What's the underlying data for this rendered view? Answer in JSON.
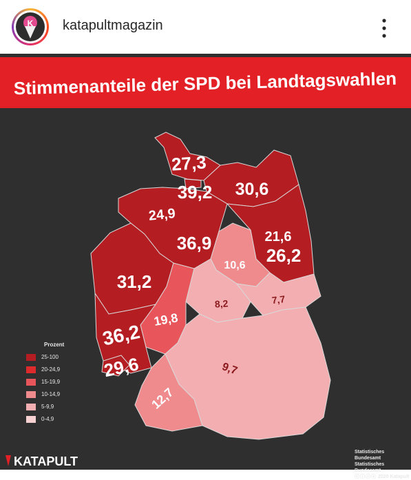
{
  "account": {
    "username": "katapultmagazin",
    "avatar_letter": "K",
    "avatar_icon": "ice-cream-cone-icon"
  },
  "header": {
    "more_icon": "vertical-ellipsis-icon"
  },
  "title": "Stimmenanteile der SPD bei Landtagswahlen",
  "colors": {
    "banner": "#e22025",
    "background": "#2f2f2f",
    "border": "#d9d9d9"
  },
  "legend": {
    "title": "Prozent",
    "classes": [
      {
        "label": "25-100",
        "color": "#b41d22"
      },
      {
        "label": "20-24,9",
        "color": "#dc2a2d"
      },
      {
        "label": "15-19,9",
        "color": "#e8555a"
      },
      {
        "label": "10-14,9",
        "color": "#ef8a8d"
      },
      {
        "label": "5-9,9",
        "color": "#f3aeb1"
      },
      {
        "label": "0-4,9",
        "color": "#f8d1d2"
      }
    ]
  },
  "states": [
    {
      "name": "Schleswig-Holstein",
      "value": 27.3,
      "label": "27,3"
    },
    {
      "name": "Hamburg",
      "value": 39.2,
      "label": "39,2"
    },
    {
      "name": "Mecklenburg-Vorpommern",
      "value": 30.6,
      "label": "30,6"
    },
    {
      "name": "Bremen",
      "value": 24.9,
      "label": "24,9"
    },
    {
      "name": "Niedersachsen",
      "value": 36.9,
      "label": "36,9"
    },
    {
      "name": "Berlin",
      "value": 21.6,
      "label": "21,6"
    },
    {
      "name": "Brandenburg",
      "value": 26.2,
      "label": "26,2"
    },
    {
      "name": "Sachsen-Anhalt",
      "value": 10.6,
      "label": "10,6"
    },
    {
      "name": "Nordrhein-Westfalen",
      "value": 31.2,
      "label": "31,2"
    },
    {
      "name": "Thüringen",
      "value": 8.2,
      "label": "8,2"
    },
    {
      "name": "Sachsen",
      "value": 7.7,
      "label": "7,7"
    },
    {
      "name": "Hessen",
      "value": 19.8,
      "label": "19,8"
    },
    {
      "name": "Rheinland-Pfalz",
      "value": 36.2,
      "label": "36,2"
    },
    {
      "name": "Saarland",
      "value": 29.6,
      "label": "29,6"
    },
    {
      "name": "Bayern",
      "value": 9.7,
      "label": "9,7"
    },
    {
      "name": "Baden-Württemberg",
      "value": 12.7,
      "label": "12,7"
    }
  ],
  "brand": "KATAPULT",
  "source": {
    "line1": "Statistisches Bundesamt",
    "line2": "Statistisches Bundesamt",
    "license": "2020 Katapult"
  }
}
